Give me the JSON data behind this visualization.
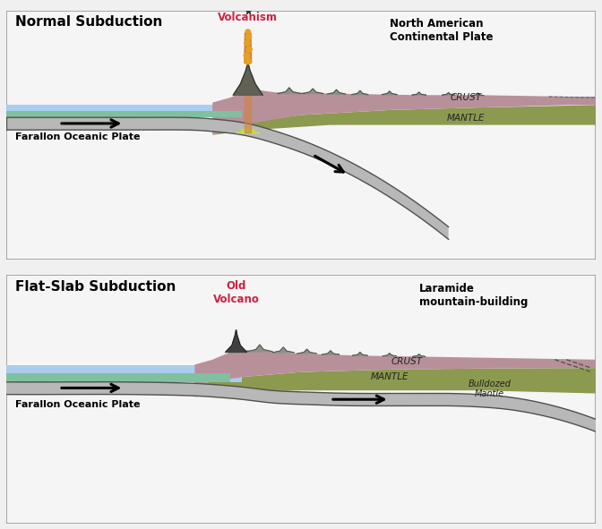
{
  "fig_width": 6.72,
  "fig_height": 5.91,
  "bg_color": "#f0f0f0",
  "panel_bg": "#f5f5f5",
  "ocean_color": "#aaccee",
  "ocean_teal": "#80c0a0",
  "crust_color": "#b8909a",
  "mantle_color": "#8c9a50",
  "plate_fill": "#b8b8b8",
  "plate_edge": "#505050",
  "white_bg": "#f0f0f0",
  "panel1": {
    "title": "Normal Subduction",
    "volcanism_label": "Volcanism",
    "continent_label": "North American\nContinental Plate",
    "farallon_label": "Farallon Oceanic Plate",
    "crust_label": "CRUST",
    "mantle_label": "MANTLE"
  },
  "panel2": {
    "title": "Flat-Slab Subduction",
    "volcano_label": "Old\nVolcano",
    "continent_label": "Laramide\nmountain-building",
    "farallon_label": "Farallon Oceanic Plate",
    "crust_label": "CRUST",
    "mantle_label": "MANTLE",
    "bulldozed_label": "Bulldozed\nMantle"
  }
}
